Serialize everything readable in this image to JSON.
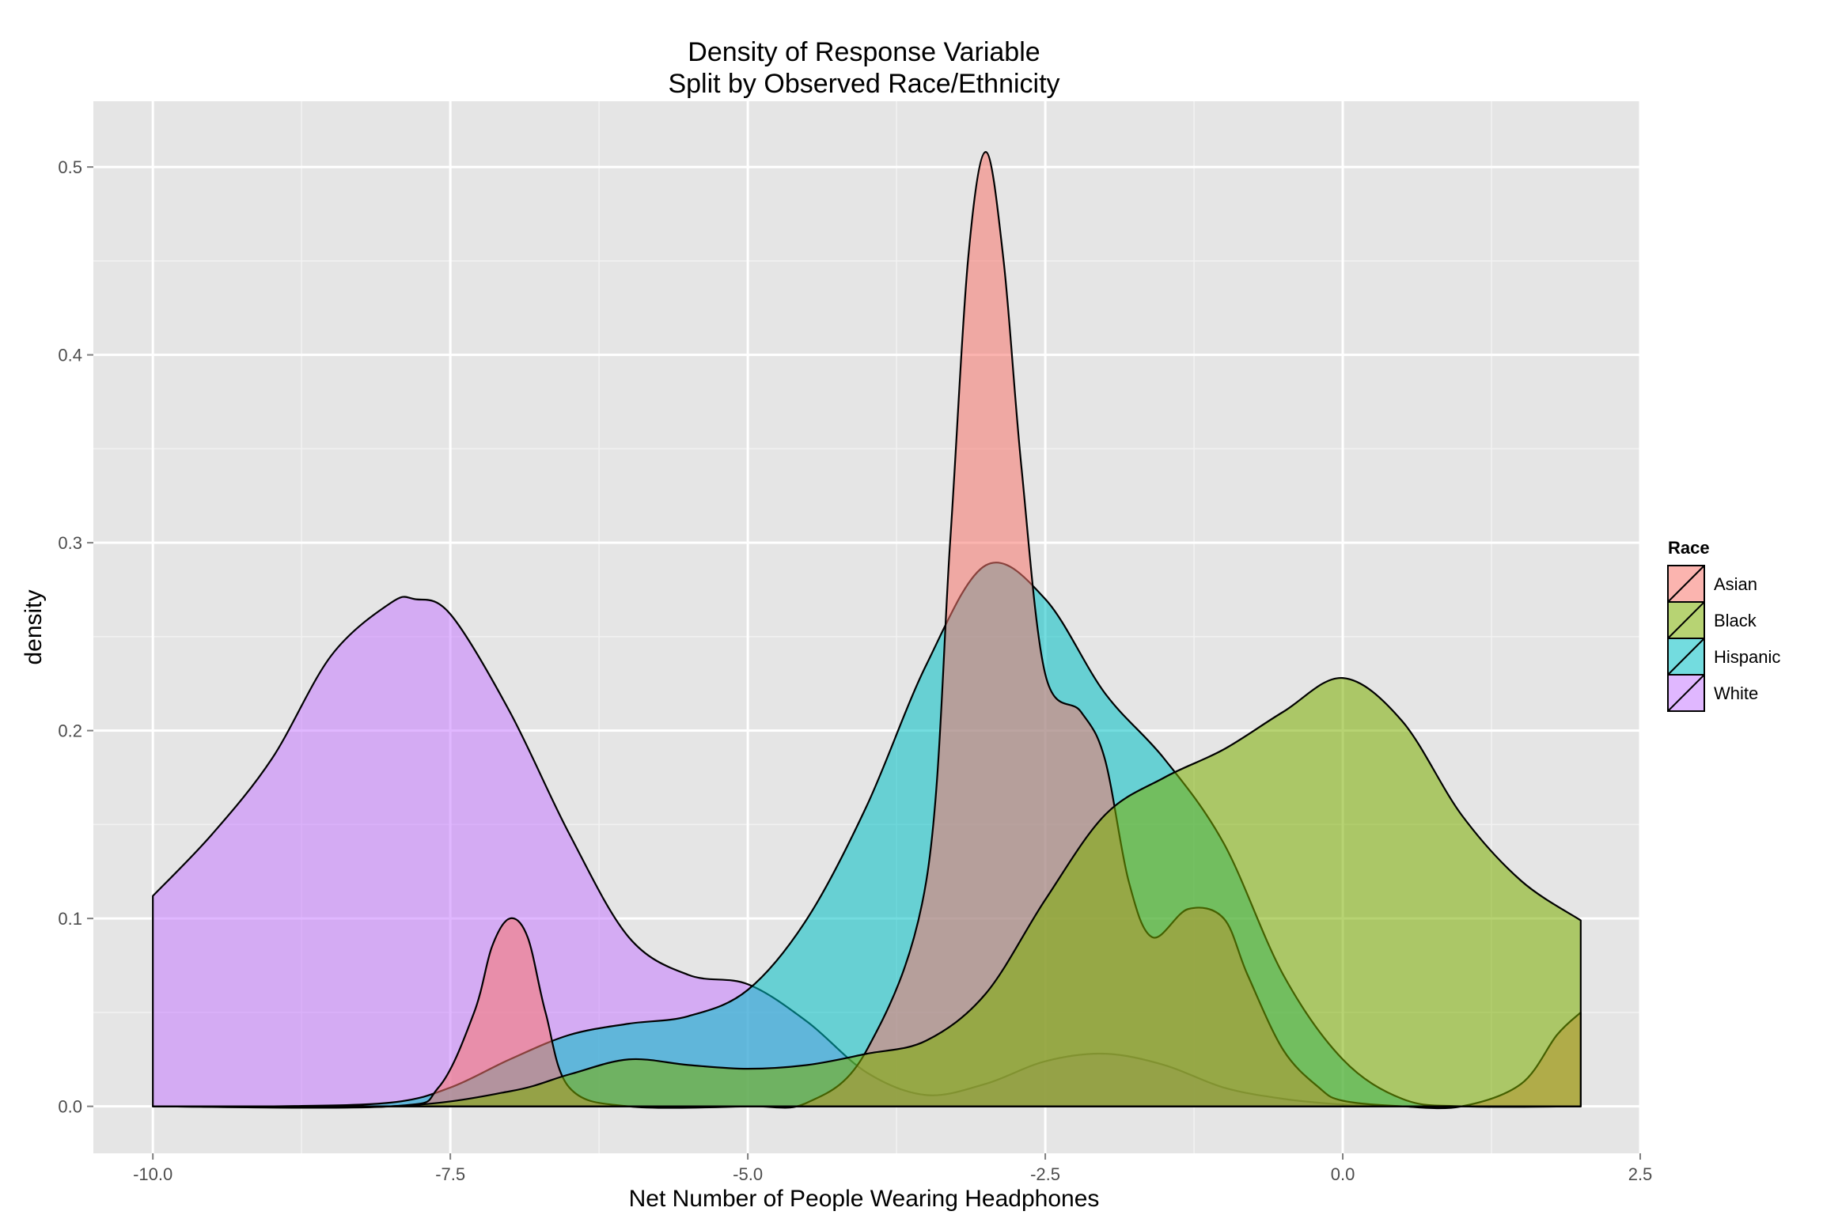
{
  "chart_data": {
    "type": "area",
    "title": [
      "Density of Response Variable",
      "Split by Observed Race/Ethnicity"
    ],
    "xlabel": "Net Number of People Wearing Headphones",
    "ylabel": "density",
    "xlim": [
      -10.5,
      2.5
    ],
    "ylim": [
      -0.025,
      0.535
    ],
    "x_ticks": [
      -10.0,
      -7.5,
      -5.0,
      -2.5,
      0.0,
      2.5
    ],
    "x_tick_labels": [
      "-10.0",
      "-7.5",
      "-5.0",
      "-2.5",
      "0.0",
      "2.5"
    ],
    "y_ticks": [
      0.0,
      0.1,
      0.2,
      0.3,
      0.4,
      0.5
    ],
    "y_tick_labels": [
      "0.0",
      "0.1",
      "0.2",
      "0.3",
      "0.4",
      "0.5"
    ],
    "grid": true,
    "legend": {
      "title": "Race",
      "position": "right"
    },
    "series": [
      {
        "name": "White",
        "color": "#C77CFF",
        "x": [
          -10,
          -9.5,
          -9,
          -8.5,
          -8,
          -7.8,
          -7.5,
          -7,
          -6.5,
          -6,
          -5.5,
          -5,
          -4.5,
          -4,
          -3.5,
          -3,
          -2.5,
          -2,
          -1.5,
          -1,
          -0.5,
          0,
          0.5,
          1,
          2
        ],
        "y": [
          0.112,
          0.145,
          0.185,
          0.24,
          0.268,
          0.27,
          0.262,
          0.21,
          0.145,
          0.09,
          0.07,
          0.065,
          0.045,
          0.018,
          0.006,
          0.012,
          0.024,
          0.028,
          0.022,
          0.01,
          0.004,
          0.001,
          0.0,
          0.0,
          0.0
        ]
      },
      {
        "name": "Hispanic",
        "color": "#00BFC4",
        "x": [
          -10,
          -9,
          -8,
          -7.5,
          -7,
          -6.5,
          -6,
          -5.5,
          -5,
          -4.5,
          -4,
          -3.5,
          -3,
          -2.5,
          -2,
          -1.5,
          -1,
          -0.5,
          0,
          0.5,
          1,
          2
        ],
        "y": [
          0.0,
          0.0,
          0.002,
          0.01,
          0.025,
          0.038,
          0.044,
          0.048,
          0.062,
          0.1,
          0.16,
          0.235,
          0.288,
          0.27,
          0.22,
          0.185,
          0.14,
          0.07,
          0.025,
          0.004,
          0.0,
          0.0
        ]
      },
      {
        "name": "Asian",
        "color": "#F8766D",
        "x": [
          -10,
          -8,
          -7.6,
          -7.3,
          -7.15,
          -7,
          -6.85,
          -6.7,
          -6.5,
          -6,
          -5,
          -4.5,
          -4,
          -3.5,
          -3.3,
          -3.15,
          -3,
          -2.85,
          -2.7,
          -2.5,
          -2.2,
          -2,
          -1.8,
          -1.6,
          -1.3,
          -1,
          -0.8,
          -0.5,
          -0.2,
          0,
          0.5,
          1,
          1.5,
          1.8,
          2
        ],
        "y": [
          0.0,
          0.0,
          0.01,
          0.05,
          0.085,
          0.1,
          0.09,
          0.05,
          0.01,
          0.0,
          0.0,
          0.002,
          0.03,
          0.12,
          0.3,
          0.45,
          0.508,
          0.45,
          0.34,
          0.23,
          0.21,
          0.185,
          0.12,
          0.09,
          0.105,
          0.1,
          0.07,
          0.03,
          0.01,
          0.003,
          0.0,
          0.0,
          0.012,
          0.038,
          0.05
        ]
      },
      {
        "name": "Black",
        "color": "#7CAE00",
        "x": [
          -10,
          -8,
          -7,
          -6.5,
          -6,
          -5.5,
          -5,
          -4.5,
          -4,
          -3.5,
          -3,
          -2.5,
          -2,
          -1.5,
          -1,
          -0.5,
          0,
          0.5,
          1,
          1.5,
          2
        ],
        "y": [
          0.0,
          0.0,
          0.008,
          0.017,
          0.025,
          0.022,
          0.02,
          0.022,
          0.028,
          0.035,
          0.06,
          0.11,
          0.155,
          0.175,
          0.19,
          0.21,
          0.228,
          0.205,
          0.155,
          0.12,
          0.099
        ]
      }
    ],
    "legend_order": [
      "Asian",
      "Black",
      "Hispanic",
      "White"
    ]
  }
}
